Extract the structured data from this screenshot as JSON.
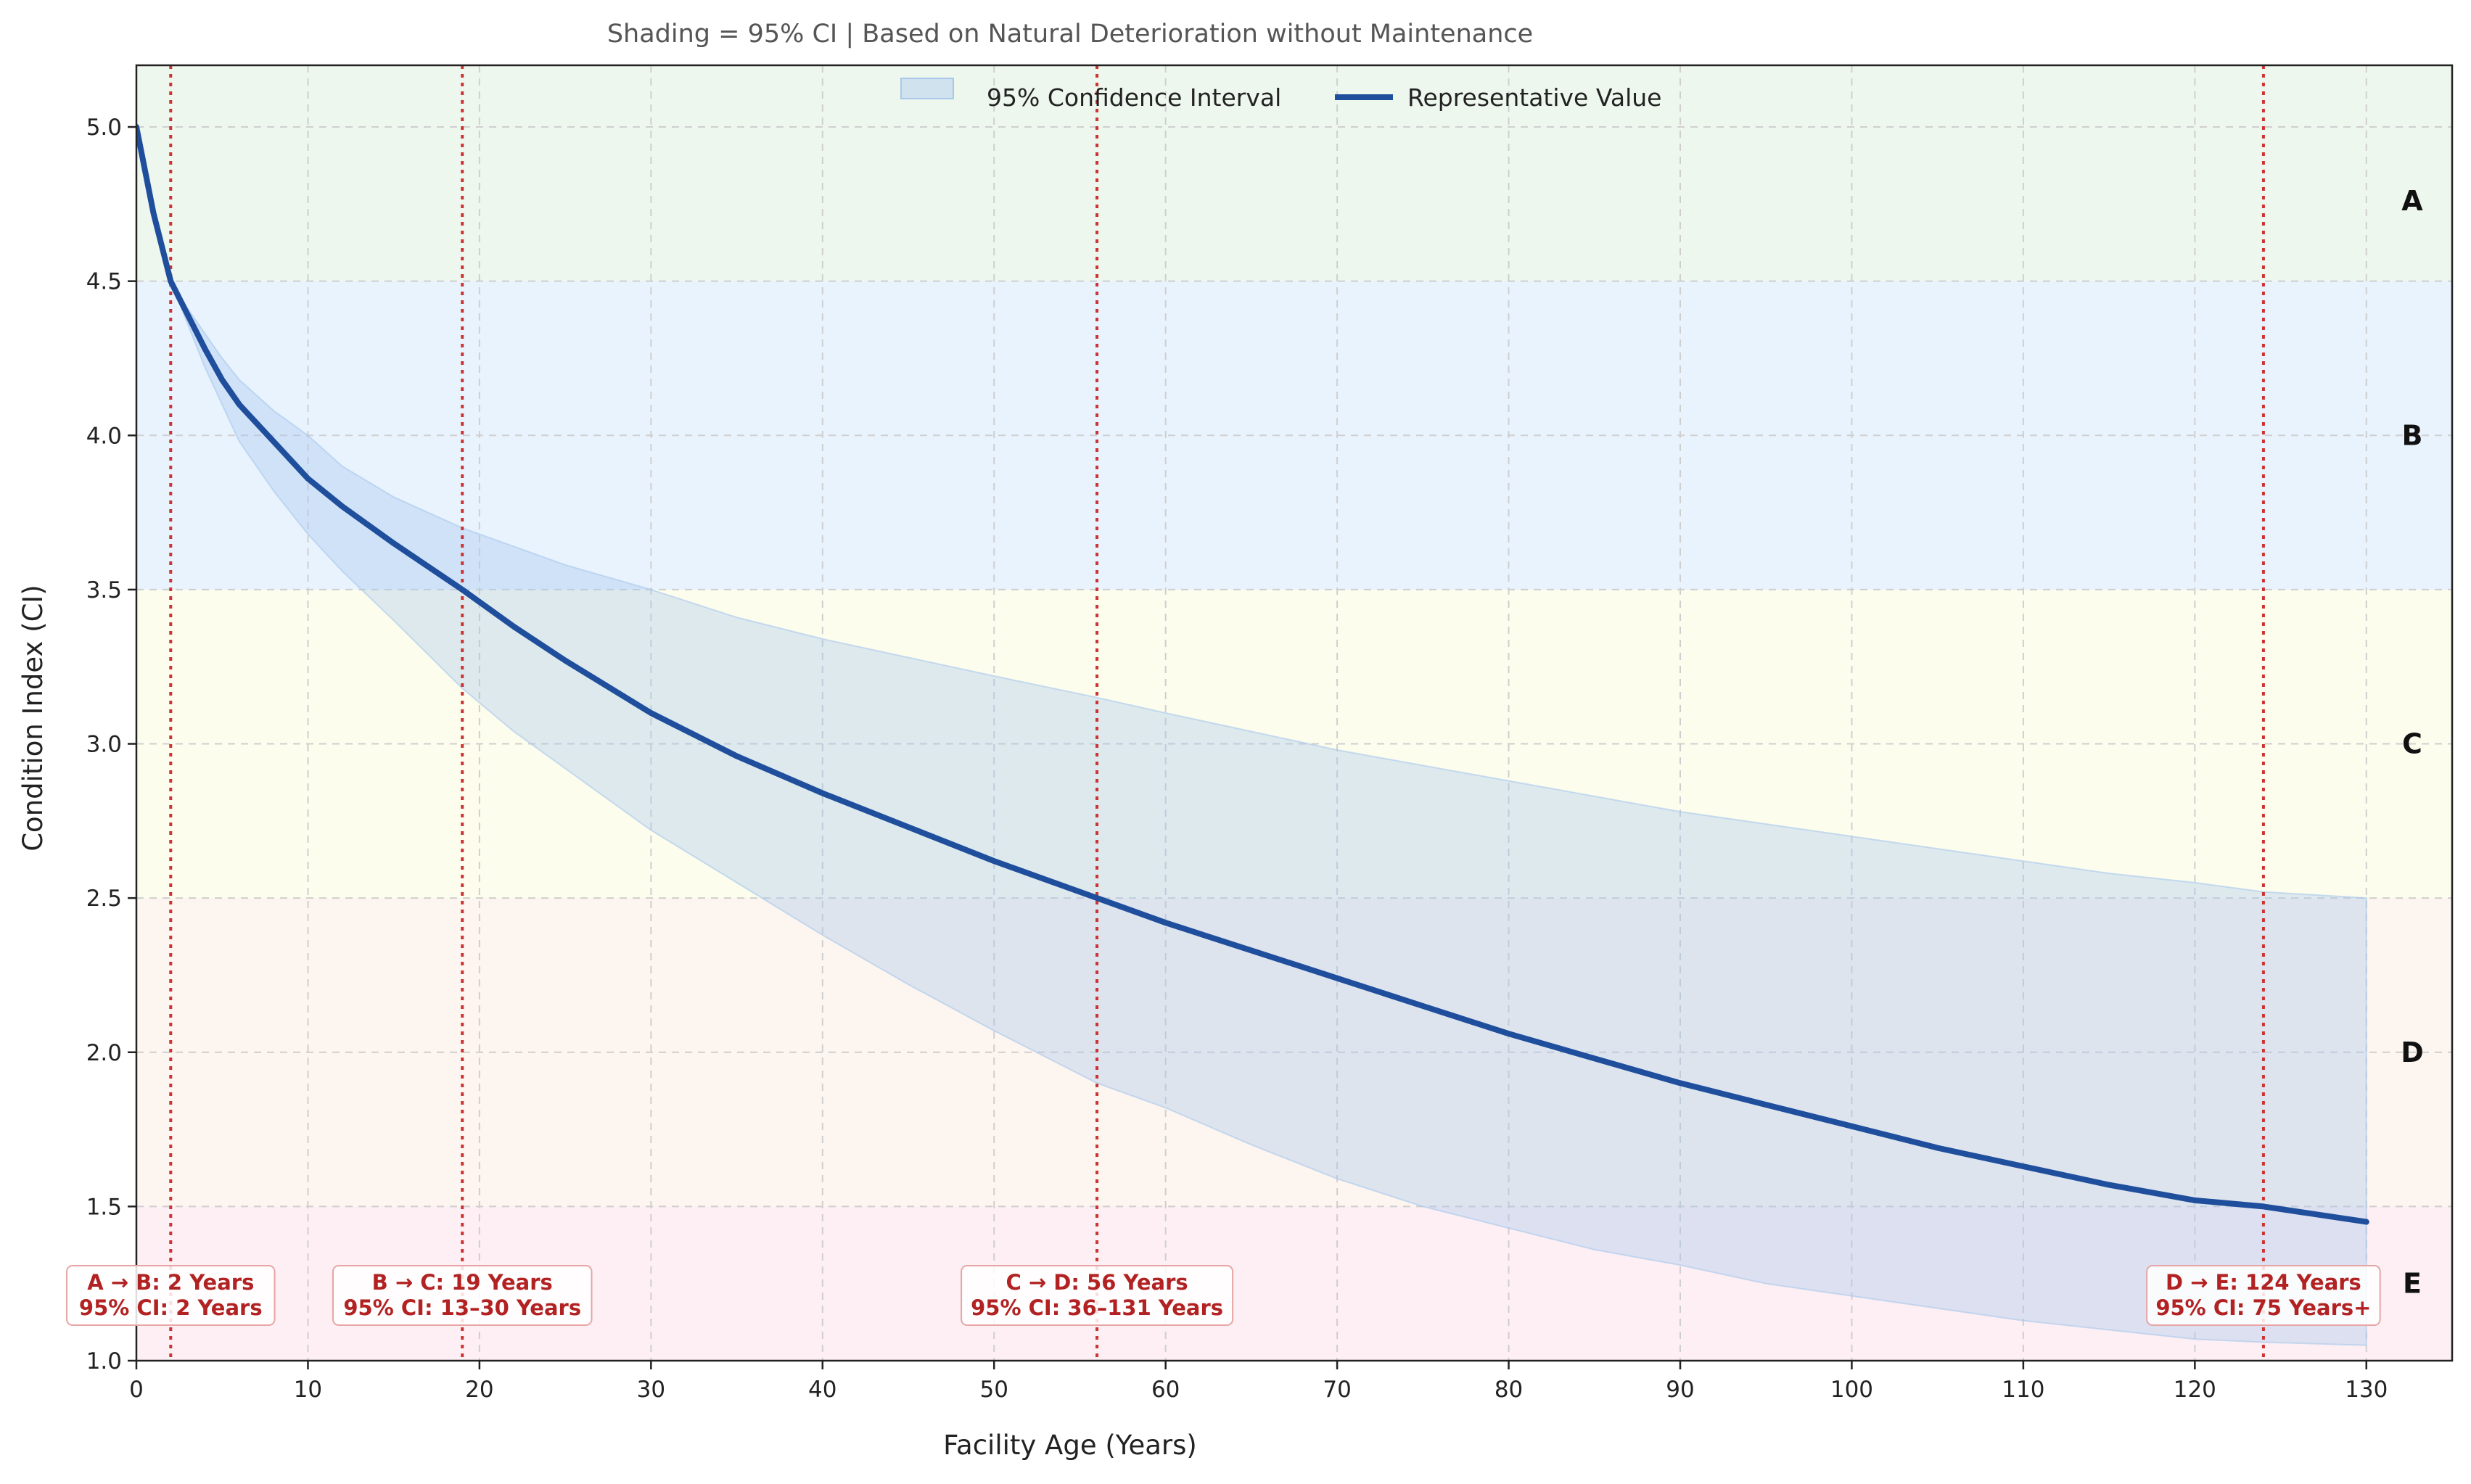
{
  "chart_data": {
    "type": "line",
    "title": "Shading = 95% CI | Based on Natural Deterioration without Maintenance",
    "xlabel": "Facility Age (Years)",
    "ylabel": "Condition Index (CI)",
    "xlim": [
      0,
      135
    ],
    "ylim": [
      1.0,
      5.2
    ],
    "xticks": [
      0,
      10,
      20,
      30,
      40,
      50,
      60,
      70,
      80,
      90,
      100,
      110,
      120,
      130
    ],
    "yticks": [
      1.0,
      1.5,
      2.0,
      2.5,
      3.0,
      3.5,
      4.0,
      4.5,
      5.0
    ],
    "grid": true,
    "legend_position": "top-center",
    "legend": [
      {
        "label": "95% Confidence Interval",
        "kind": "band"
      },
      {
        "label": "Representative Value",
        "kind": "line"
      }
    ],
    "grade_bands": [
      {
        "grade": "A",
        "from": 4.5,
        "to": 5.2,
        "color": "#eef7ee"
      },
      {
        "grade": "B",
        "from": 3.5,
        "to": 4.5,
        "color": "#e8f3fd"
      },
      {
        "grade": "C",
        "from": 2.5,
        "to": 3.5,
        "color": "#fdfdee"
      },
      {
        "grade": "D",
        "from": 1.5,
        "to": 2.5,
        "color": "#fdf5ef"
      },
      {
        "grade": "E",
        "from": 1.0,
        "to": 1.5,
        "color": "#fdeff3"
      }
    ],
    "series": [
      {
        "name": "Representative Value",
        "color": "#1f4e9c",
        "x": [
          0,
          1,
          2,
          3,
          4,
          5,
          6,
          8,
          10,
          12,
          15,
          19,
          22,
          25,
          30,
          35,
          40,
          45,
          50,
          56,
          60,
          65,
          70,
          75,
          80,
          85,
          90,
          95,
          100,
          105,
          110,
          115,
          120,
          124,
          130
        ],
        "y": [
          5.0,
          4.72,
          4.5,
          4.39,
          4.28,
          4.18,
          4.1,
          3.98,
          3.86,
          3.77,
          3.65,
          3.5,
          3.38,
          3.27,
          3.1,
          2.96,
          2.84,
          2.73,
          2.62,
          2.5,
          2.42,
          2.33,
          2.24,
          2.15,
          2.06,
          1.98,
          1.9,
          1.83,
          1.76,
          1.69,
          1.63,
          1.57,
          1.52,
          1.5,
          1.45
        ]
      }
    ],
    "confidence_interval": {
      "name": "95% Confidence Interval",
      "color": "#a9c8ec",
      "x": [
        0,
        1,
        2,
        3,
        4,
        5,
        6,
        8,
        10,
        12,
        15,
        19,
        22,
        25,
        30,
        35,
        40,
        45,
        50,
        56,
        60,
        65,
        70,
        75,
        80,
        85,
        90,
        95,
        100,
        105,
        110,
        115,
        120,
        124,
        130
      ],
      "lower": [
        5.0,
        4.72,
        4.5,
        4.36,
        4.22,
        4.1,
        3.98,
        3.82,
        3.68,
        3.56,
        3.4,
        3.18,
        3.04,
        2.92,
        2.72,
        2.55,
        2.38,
        2.22,
        2.07,
        1.9,
        1.82,
        1.7,
        1.59,
        1.5,
        1.43,
        1.36,
        1.31,
        1.25,
        1.21,
        1.17,
        1.13,
        1.1,
        1.07,
        1.06,
        1.05
      ],
      "upper": [
        5.0,
        4.72,
        4.5,
        4.41,
        4.33,
        4.25,
        4.18,
        4.08,
        4.0,
        3.9,
        3.8,
        3.7,
        3.64,
        3.58,
        3.5,
        3.41,
        3.34,
        3.28,
        3.22,
        3.15,
        3.1,
        3.04,
        2.98,
        2.93,
        2.88,
        2.83,
        2.78,
        2.74,
        2.7,
        2.66,
        2.62,
        2.58,
        2.55,
        2.52,
        2.5
      ]
    },
    "transitions": [
      {
        "x": 2,
        "line1": "A → B: 2 Years",
        "line2": "95% CI: 2 Years"
      },
      {
        "x": 19,
        "line1": "B → C: 19 Years",
        "line2": "95% CI: 13–30 Years"
      },
      {
        "x": 56,
        "line1": "C → D: 56 Years",
        "line2": "95% CI: 36–131 Years"
      },
      {
        "x": 124,
        "line1": "D → E: 124 Years",
        "line2": "95% CI: 75 Years+"
      }
    ],
    "colors": {
      "line": "#1f4e9c",
      "band": "#a9c8ec",
      "transition": "#cc3333",
      "annotation_text": "#b22222",
      "grid": "#cfcfcf"
    }
  }
}
